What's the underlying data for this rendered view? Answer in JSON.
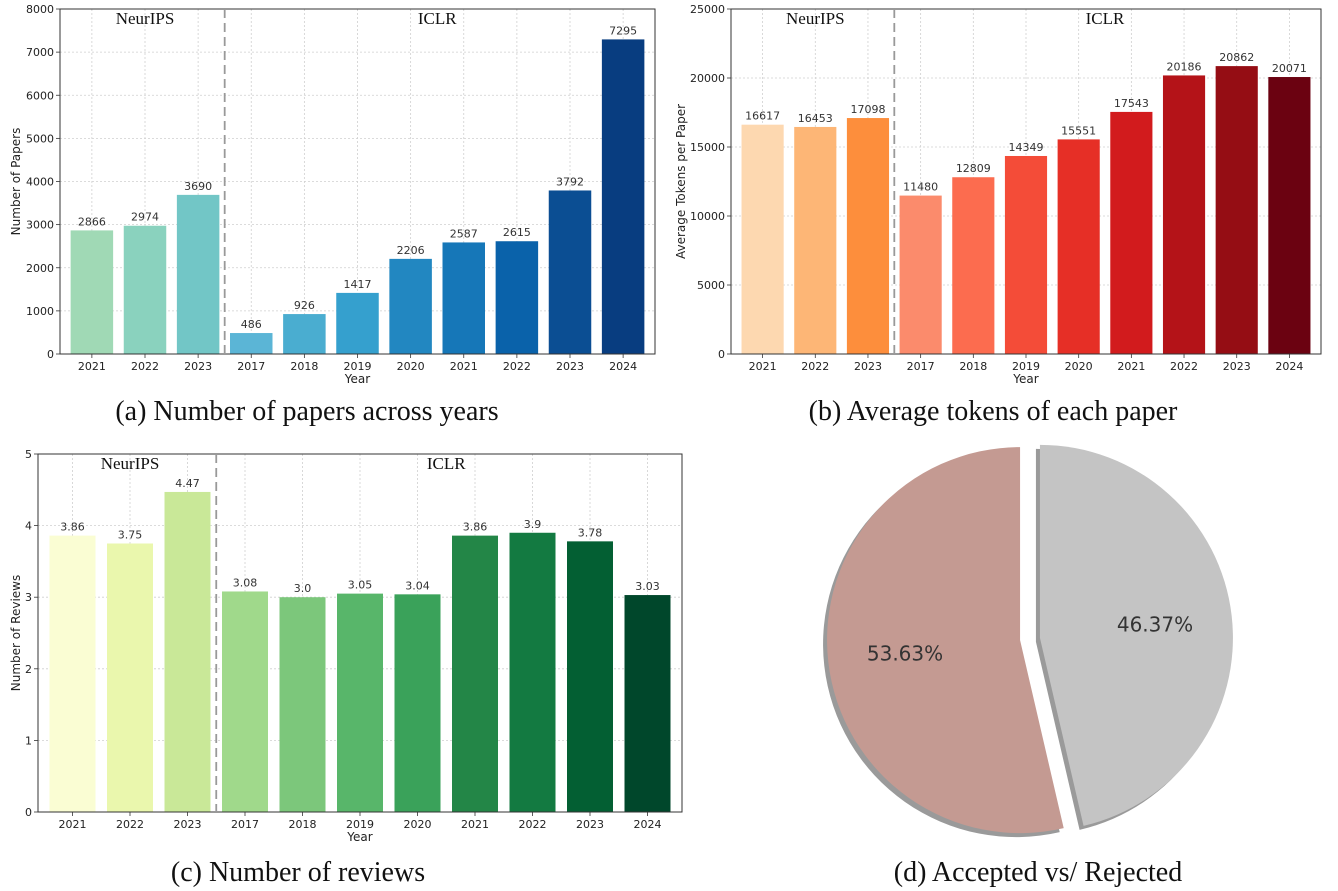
{
  "chart_data": [
    {
      "type": "bar",
      "caption": "(a) Number of papers across years",
      "categories": [
        "2021",
        "2022",
        "2023",
        "2017",
        "2018",
        "2019",
        "2020",
        "2021",
        "2022",
        "2023",
        "2024"
      ],
      "values": [
        2866,
        2974,
        3690,
        486,
        926,
        1417,
        2206,
        2587,
        2615,
        3792,
        7295
      ],
      "value_labels": [
        "2866",
        "2974",
        "3690",
        "486",
        "926",
        "1417",
        "2206",
        "2587",
        "2615",
        "3792",
        "7295"
      ],
      "groups": [
        {
          "label": "NeurIPS",
          "count": 3
        },
        {
          "label": "ICLR",
          "count": 8
        }
      ],
      "xlabel": "Year",
      "ylabel": "Number of Papers",
      "ylim": [
        0,
        8000
      ],
      "yticks": [
        "0",
        "1000",
        "2000",
        "3000",
        "4000",
        "5000",
        "6000",
        "7000",
        "8000"
      ],
      "ytick_values": [
        0,
        1000,
        2000,
        3000,
        4000,
        5000,
        6000,
        7000,
        8000
      ],
      "grid": true,
      "colors": [
        "#a0d9b5",
        "#8ad2be",
        "#72c6c6",
        "#5bb5d6",
        "#4aadd0",
        "#35a0ce",
        "#2287c1",
        "#1677b8",
        "#0a62aa",
        "#0b4e93",
        "#083d80"
      ]
    },
    {
      "type": "bar",
      "caption": "(b) Average tokens of each paper",
      "categories": [
        "2021",
        "2022",
        "2023",
        "2017",
        "2018",
        "2019",
        "2020",
        "2021",
        "2022",
        "2023",
        "2024"
      ],
      "values": [
        16617,
        16453,
        17098,
        11480,
        12809,
        14349,
        15551,
        17543,
        20186,
        20862,
        20071
      ],
      "value_labels": [
        "16617",
        "16453",
        "17098",
        "11480",
        "12809",
        "14349",
        "15551",
        "17543",
        "20186",
        "20862",
        "20071"
      ],
      "groups": [
        {
          "label": "NeurIPS",
          "count": 3
        },
        {
          "label": "ICLR",
          "count": 8
        }
      ],
      "xlabel": "Year",
      "ylabel": "Average Tokens per Paper",
      "ylim": [
        0,
        25000
      ],
      "yticks": [
        "0",
        "5000",
        "10000",
        "15000",
        "20000",
        "25000"
      ],
      "ytick_values": [
        0,
        5000,
        10000,
        15000,
        20000,
        25000
      ],
      "grid": true,
      "colors": [
        "#fdd8b0",
        "#fdb676",
        "#fd8e3c",
        "#fb8b6c",
        "#fc6c4f",
        "#f44c38",
        "#e62f26",
        "#d21b1d",
        "#b41318",
        "#950d14",
        "#6b0211"
      ]
    },
    {
      "type": "bar",
      "caption": "(c) Number of reviews",
      "categories": [
        "2021",
        "2022",
        "2023",
        "2017",
        "2018",
        "2019",
        "2020",
        "2021",
        "2022",
        "2023",
        "2024"
      ],
      "values": [
        3.86,
        3.75,
        4.47,
        3.08,
        3.0,
        3.05,
        3.04,
        3.86,
        3.9,
        3.78,
        3.03
      ],
      "value_labels": [
        "3.86",
        "3.75",
        "4.47",
        "3.08",
        "3.0",
        "3.05",
        "3.04",
        "3.86",
        "3.9",
        "3.78",
        "3.03"
      ],
      "groups": [
        {
          "label": "NeurIPS",
          "count": 3
        },
        {
          "label": "ICLR",
          "count": 8
        }
      ],
      "xlabel": "Year",
      "ylabel": "Number of Reviews",
      "ylim": [
        0,
        5
      ],
      "yticks": [
        "0",
        "1",
        "2",
        "3",
        "4",
        "5"
      ],
      "ytick_values": [
        0,
        1,
        2,
        3,
        4,
        5
      ],
      "grid": true,
      "colors": [
        "#fafdd3",
        "#eaf7ad",
        "#c9e898",
        "#a0d98b",
        "#7cc77b",
        "#58b66a",
        "#3aa25a",
        "#238647",
        "#137a41",
        "#035f33",
        "#00472b"
      ]
    },
    {
      "type": "pie",
      "caption": "(d) Accepted vs/ Rejected",
      "values": [
        53.63,
        46.37
      ],
      "value_labels": [
        "53.63%",
        "46.37%"
      ],
      "colors": [
        "#c49a92",
        "#c4c4c4"
      ],
      "explode": true,
      "shadow": true
    }
  ]
}
